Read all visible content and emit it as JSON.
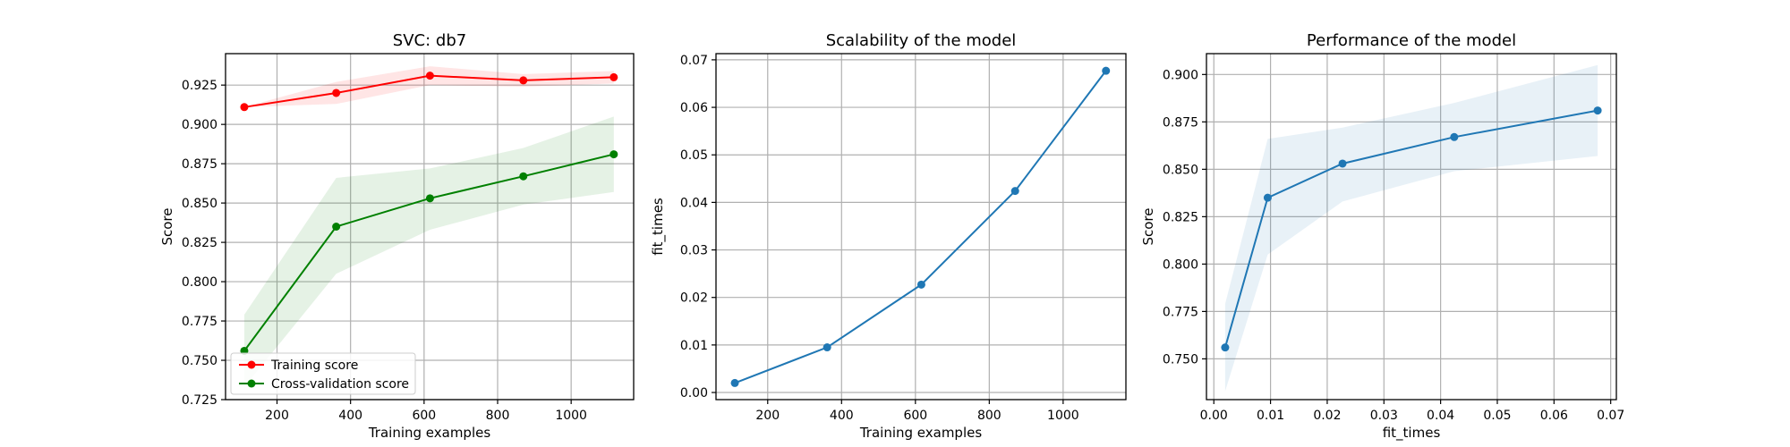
{
  "chart_data": [
    {
      "type": "line",
      "title": "SVC: db7",
      "xlabel": "Training examples",
      "ylabel": "Score",
      "xlim": [
        60,
        1170
      ],
      "ylim": [
        0.725,
        0.945
      ],
      "xticks": [
        200,
        400,
        600,
        800,
        1000
      ],
      "xtick_labels": [
        "200",
        "400",
        "600",
        "800",
        "1000"
      ],
      "yticks": [
        0.725,
        0.75,
        0.775,
        0.8,
        0.825,
        0.85,
        0.875,
        0.9,
        0.925
      ],
      "ytick_labels": [
        "0.725",
        "0.750",
        "0.775",
        "0.800",
        "0.825",
        "0.850",
        "0.875",
        "0.900",
        "0.925"
      ],
      "grid": true,
      "legend": "lower left",
      "x": [
        111,
        361,
        616,
        870,
        1116
      ],
      "series": [
        {
          "name": "Training score",
          "color": "#ff0000",
          "band_color": "#ff0000",
          "values": [
            0.911,
            0.92,
            0.931,
            0.928,
            0.93
          ],
          "band_low": [
            0.911,
            0.913,
            0.925,
            0.924,
            0.926
          ],
          "band_high": [
            0.911,
            0.927,
            0.937,
            0.932,
            0.934
          ]
        },
        {
          "name": "Cross-validation score",
          "color": "#008000",
          "band_color": "#008000",
          "values": [
            0.756,
            0.835,
            0.853,
            0.867,
            0.881
          ],
          "band_low": [
            0.733,
            0.805,
            0.833,
            0.849,
            0.857
          ],
          "band_high": [
            0.779,
            0.866,
            0.872,
            0.885,
            0.905
          ]
        }
      ]
    },
    {
      "type": "line",
      "title": "Scalability of the model",
      "xlabel": "Training examples",
      "ylabel": "fit_times",
      "xlim": [
        60,
        1170
      ],
      "ylim": [
        -0.0015,
        0.0713
      ],
      "xticks": [
        200,
        400,
        600,
        800,
        1000
      ],
      "xtick_labels": [
        "200",
        "400",
        "600",
        "800",
        "1000"
      ],
      "yticks": [
        0,
        0.01,
        0.02,
        0.03,
        0.04,
        0.05,
        0.06,
        0.07
      ],
      "ytick_labels": [
        "0.00",
        "0.01",
        "0.02",
        "0.03",
        "0.04",
        "0.05",
        "0.06",
        "0.07"
      ],
      "grid": true,
      "x": [
        111,
        361,
        616,
        870,
        1116
      ],
      "series": [
        {
          "color": "#1f77b4",
          "values": [
            0.002,
            0.0095,
            0.0227,
            0.0424,
            0.0677
          ]
        }
      ]
    },
    {
      "type": "line",
      "title": "Performance of the model",
      "xlabel": "fit_times",
      "ylabel": "Score",
      "xlim": [
        -0.0013,
        0.071
      ],
      "ylim": [
        0.7285,
        0.911
      ],
      "xticks": [
        0,
        0.01,
        0.02,
        0.03,
        0.04,
        0.05,
        0.06,
        0.07
      ],
      "xtick_labels": [
        "0.00",
        "0.01",
        "0.02",
        "0.03",
        "0.04",
        "0.05",
        "0.06",
        "0.07"
      ],
      "yticks": [
        0.75,
        0.775,
        0.8,
        0.825,
        0.85,
        0.875,
        0.9
      ],
      "ytick_labels": [
        "0.750",
        "0.775",
        "0.800",
        "0.825",
        "0.850",
        "0.875",
        "0.900"
      ],
      "grid": true,
      "x": [
        0.002,
        0.0095,
        0.0227,
        0.0424,
        0.0677
      ],
      "series": [
        {
          "color": "#1f77b4",
          "band_color": "#1f77b4",
          "values": [
            0.756,
            0.835,
            0.853,
            0.867,
            0.881
          ],
          "band_low": [
            0.733,
            0.805,
            0.833,
            0.849,
            0.857
          ],
          "band_high": [
            0.779,
            0.866,
            0.872,
            0.885,
            0.905
          ]
        }
      ]
    }
  ]
}
